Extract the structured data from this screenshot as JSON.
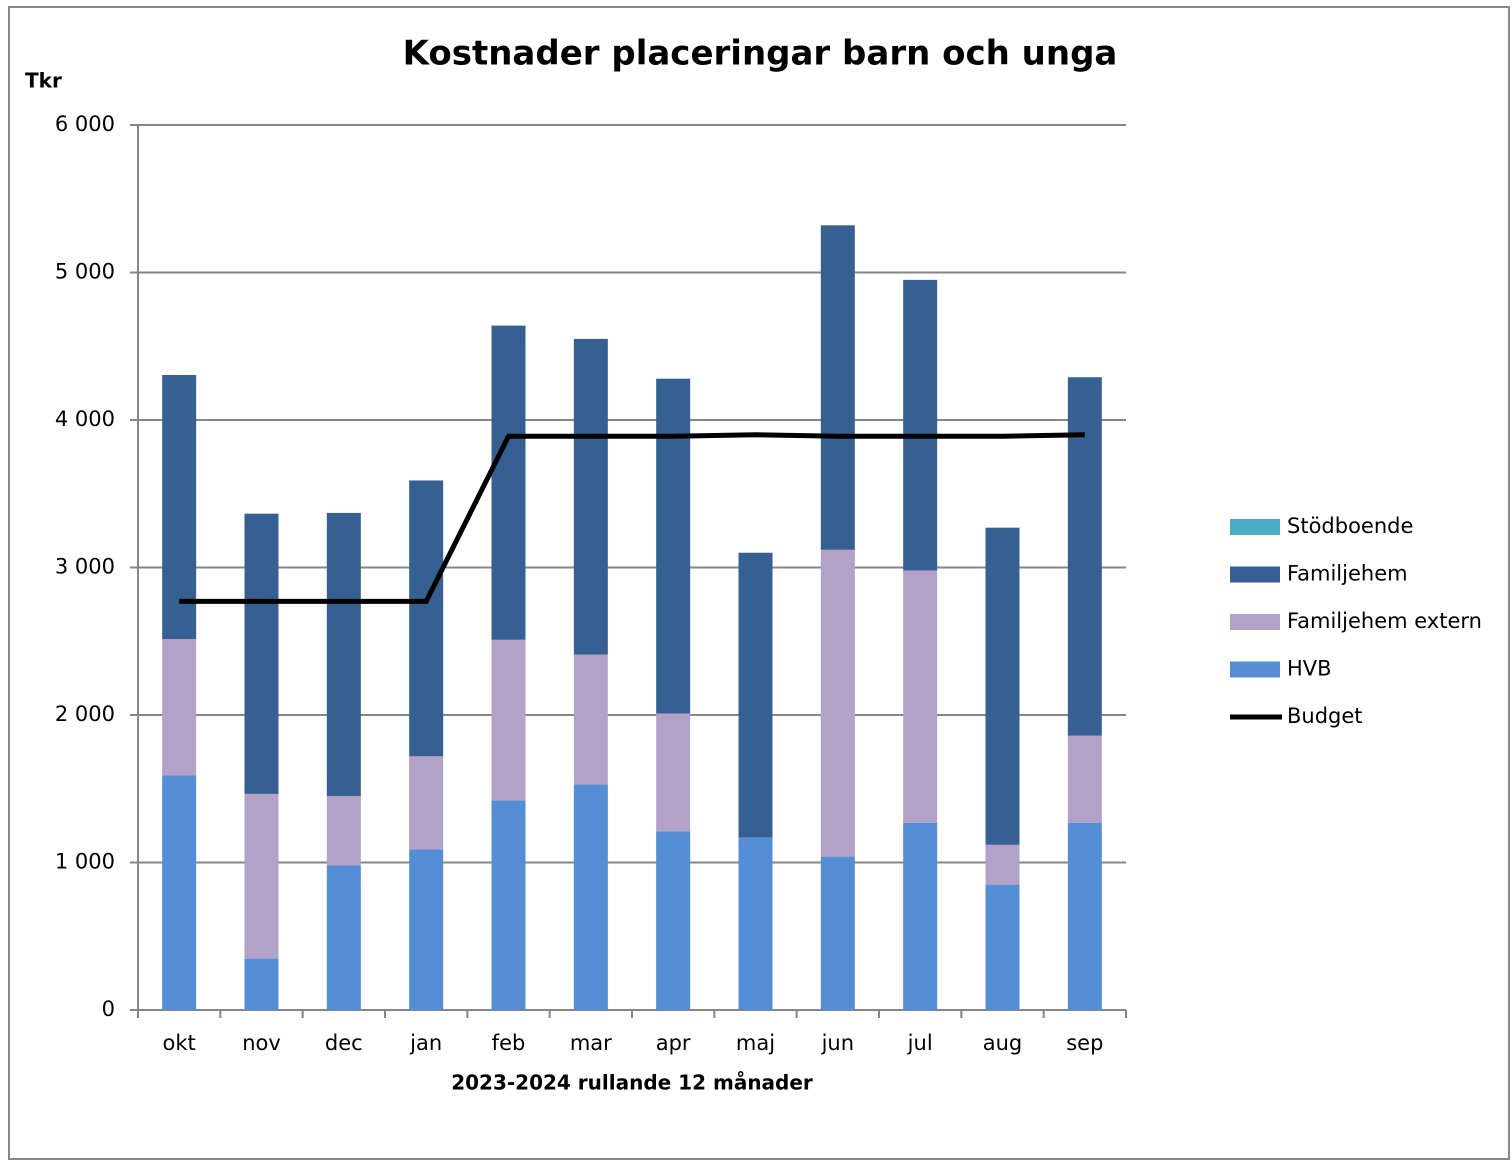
{
  "chart_data": {
    "type": "bar",
    "stacked": true,
    "title": "Kostnader placeringar barn och unga",
    "y_label": "Tkr",
    "x_label": "2023-2024 rullande 12 månader",
    "categories": [
      "okt",
      "nov",
      "dec",
      "jan",
      "feb",
      "mar",
      "apr",
      "maj",
      "jun",
      "jul",
      "aug",
      "sep"
    ],
    "series": [
      {
        "name": "Stödboende",
        "color": "#4bacc6",
        "values": [
          0,
          0,
          0,
          0,
          0,
          0,
          0,
          0,
          0,
          0,
          0,
          0
        ]
      },
      {
        "name": "Familjehem",
        "color": "#376092",
        "values": [
          1790,
          1900,
          1920,
          1870,
          2130,
          2140,
          2270,
          1930,
          2200,
          1970,
          2150,
          2430
        ]
      },
      {
        "name": "Familjehem extern",
        "color": "#b3a2c7",
        "values": [
          925,
          1115,
          470,
          630,
          1090,
          880,
          800,
          0,
          2080,
          1710,
          270,
          590
        ]
      },
      {
        "name": "HVB",
        "color": "#558ed5",
        "values": [
          1590,
          350,
          980,
          1090,
          1420,
          1530,
          1210,
          1170,
          1040,
          1270,
          850,
          1270
        ]
      },
      {
        "name": "Budget",
        "color": "#000000",
        "type": "line",
        "values": [
          2770,
          2770,
          2770,
          2770,
          3890,
          3890,
          3890,
          3900,
          3890,
          3890,
          3890,
          3900
        ]
      }
    ],
    "ylim": [
      0,
      6000
    ],
    "yticks": [
      0,
      {
        "value": 1000,
        "label": "1 000"
      },
      {
        "value": 2000,
        "label": "2 000"
      },
      {
        "value": 3000,
        "label": "3 000"
      },
      {
        "value": 4000,
        "label": "4 000"
      },
      {
        "value": 5000,
        "label": "5 000"
      },
      {
        "value": 6000,
        "label": "6 000"
      }
    ],
    "grid": true,
    "legend": "right"
  }
}
